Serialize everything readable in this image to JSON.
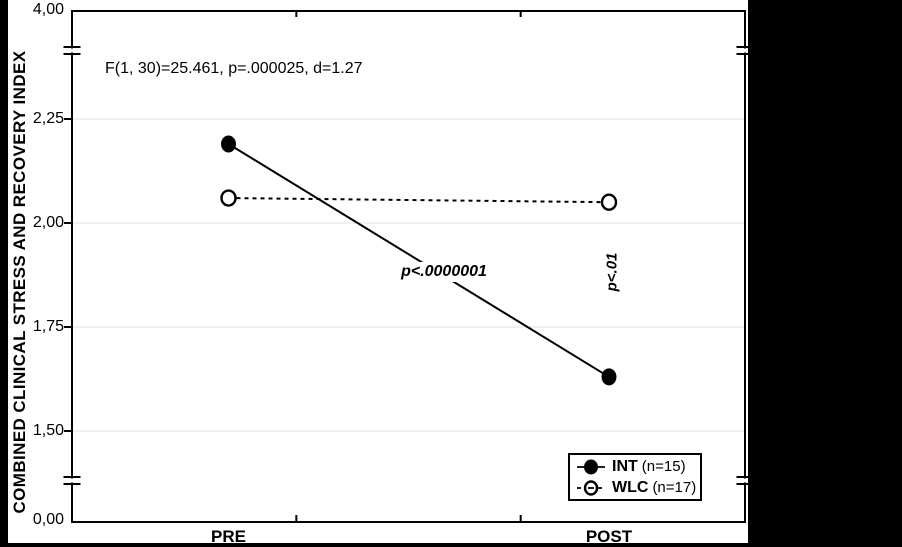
{
  "chart": {
    "y_axis_title": "COMBINED CLINICAL STRESS AND RECOVERY INDEX",
    "stats_annotation": "F(1, 30)=25.461, p=.000025, d=1.27",
    "int_p_label": "p<.0000001",
    "wlc_p_label": "p<.01"
  },
  "chart_data": {
    "type": "line",
    "title": "",
    "xlabel": "",
    "ylabel": "COMBINED CLINICAL STRESS AND RECOVERY INDEX",
    "categories": [
      "PRE",
      "POST"
    ],
    "series": [
      {
        "name": "INT",
        "n_label": "(n=15)",
        "values": [
          2.19,
          1.63
        ],
        "marker": "filled-circle",
        "line_style": "solid",
        "color": "#000000"
      },
      {
        "name": "WLC",
        "n_label": "(n=17)",
        "values": [
          2.06,
          2.05
        ],
        "marker": "open-circle",
        "line_style": "dashed",
        "color": "#000000"
      }
    ],
    "y_ticks": [
      {
        "label": "4,00",
        "value": 4.0,
        "position": "top-break"
      },
      {
        "label": "2,25",
        "value": 2.25,
        "position": "linear"
      },
      {
        "label": "2,00",
        "value": 2.0,
        "position": "linear"
      },
      {
        "label": "1,75",
        "value": 1.75,
        "position": "linear"
      },
      {
        "label": "1,50",
        "value": 1.5,
        "position": "linear"
      },
      {
        "label": "0,00",
        "value": 0.0,
        "position": "bottom-break"
      }
    ],
    "axis_breaks": {
      "top": true,
      "bottom": true
    },
    "grid": "horizontal-light",
    "legend_position": "bottom-right",
    "annotations": [
      {
        "text": "F(1, 30)=25.461, p=.000025, d=1.27",
        "style": "plain"
      },
      {
        "text": "p<.0000001",
        "style": "italic",
        "series": "INT"
      },
      {
        "text": "p<.01",
        "style": "italic-vertical",
        "series": "WLC"
      }
    ]
  },
  "colors": {
    "foreground": "#000000",
    "plot_background": "#ffffff",
    "frame_background": "#000000",
    "gridline": "#e8e8e8"
  }
}
